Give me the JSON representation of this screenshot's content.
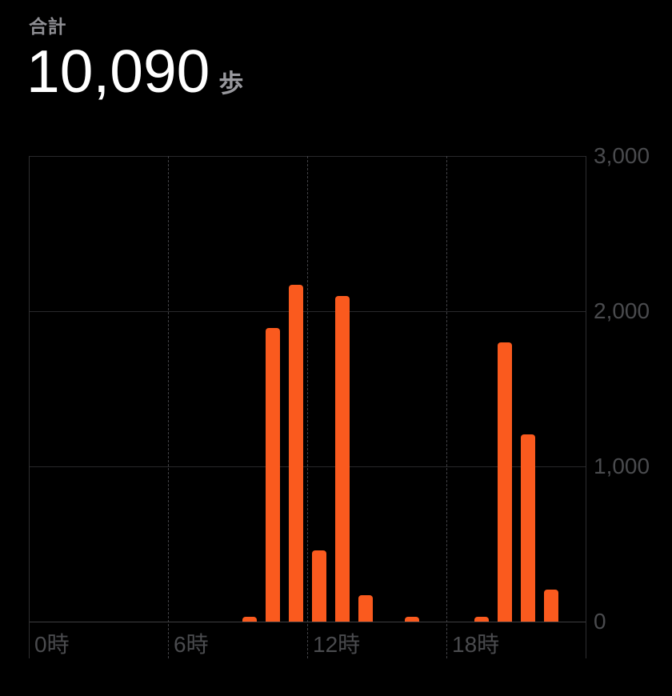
{
  "header": {
    "total_label": "合計",
    "total_value": "10,090",
    "unit": "歩"
  },
  "colors": {
    "background": "#000000",
    "bar": "#fa5a1e",
    "total_value_text": "#ffffff",
    "secondary_text": "#8e8e93",
    "tick_label_text": "#4a4b4e",
    "gridline": "#29292b",
    "baseline": "#3e3e42",
    "dashed_line": "#414145"
  },
  "chart_data": {
    "type": "bar",
    "ylabel": "",
    "xlabel": "",
    "unit": "歩",
    "ylim": [
      0,
      3000
    ],
    "hours_span": 24,
    "grid": {
      "horizontal": "solid",
      "vertical": "dashed"
    },
    "legend": "none",
    "y_ticks": [
      {
        "value": 0,
        "label": "0"
      },
      {
        "value": 1000,
        "label": "1,000"
      },
      {
        "value": 2000,
        "label": "2,000"
      },
      {
        "value": 3000,
        "label": "3,000"
      }
    ],
    "x_ticks": [
      {
        "hour": 0,
        "label": "0時"
      },
      {
        "hour": 6,
        "label": "6時"
      },
      {
        "hour": 12,
        "label": "12時"
      },
      {
        "hour": 18,
        "label": "18時"
      }
    ],
    "bars": [
      {
        "hour": 9,
        "steps": 30
      },
      {
        "hour": 10,
        "steps": 1890
      },
      {
        "hour": 11,
        "steps": 2170
      },
      {
        "hour": 12,
        "steps": 460
      },
      {
        "hour": 13,
        "steps": 2100
      },
      {
        "hour": 14,
        "steps": 170
      },
      {
        "hour": 16,
        "steps": 30
      },
      {
        "hour": 19,
        "steps": 30
      },
      {
        "hour": 20,
        "steps": 1800
      },
      {
        "hour": 21,
        "steps": 1205
      },
      {
        "hour": 22,
        "steps": 205
      }
    ]
  }
}
